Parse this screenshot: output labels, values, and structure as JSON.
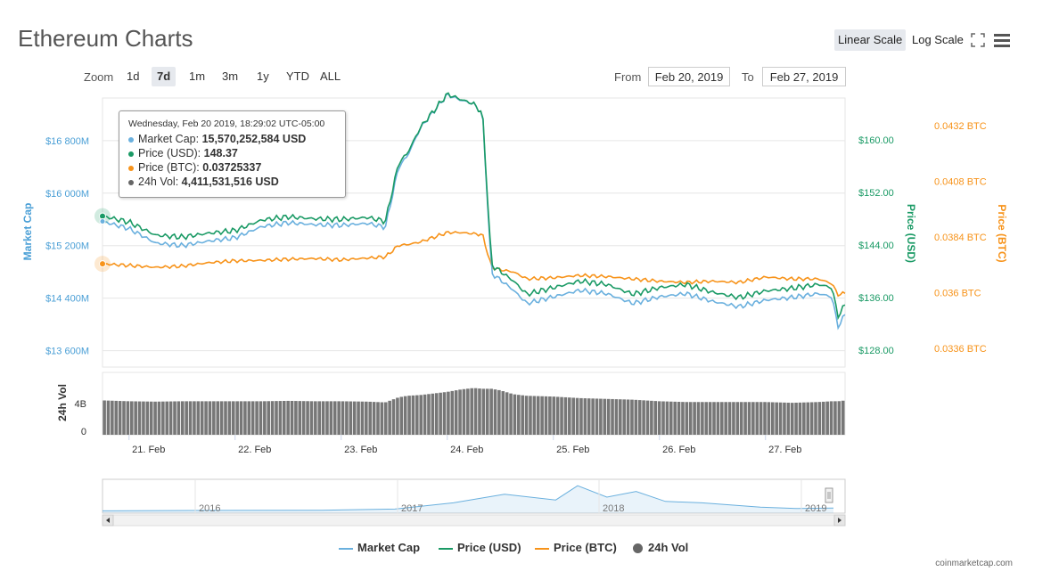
{
  "header": {
    "title": "Ethereum Charts",
    "linear_label": "Linear Scale",
    "log_label": "Log Scale"
  },
  "toolbar": {
    "zoom_label": "Zoom",
    "zoom_options": [
      "1d",
      "7d",
      "1m",
      "3m",
      "1y",
      "YTD",
      "ALL"
    ],
    "zoom_selected": "7d",
    "from_label": "From",
    "from_value": "Feb 20, 2019",
    "to_label": "To",
    "to_value": "Feb 27, 2019"
  },
  "tooltip": {
    "header": "Wednesday, Feb 20 2019, 18:29:02 UTC-05:00",
    "rows": [
      {
        "label": "Market Cap:",
        "value": "15,570,252,584 USD",
        "color": "#6ab0de"
      },
      {
        "label": "Price (USD):",
        "value": "148.37",
        "color": "#1a9a65"
      },
      {
        "label": "Price (BTC):",
        "value": "0.03725337",
        "color": "#f7931a"
      },
      {
        "label": "24h Vol:",
        "value": "4,411,531,516 USD",
        "color": "#666666"
      }
    ]
  },
  "legend": [
    {
      "name": "Market Cap",
      "color": "#6ab0de",
      "kind": "line"
    },
    {
      "name": "Price (USD)",
      "color": "#1a9a65",
      "kind": "line"
    },
    {
      "name": "Price (BTC)",
      "color": "#f7931a",
      "kind": "line"
    },
    {
      "name": "24h Vol",
      "color": "#666666",
      "kind": "circle"
    }
  ],
  "credit": "coinmarketcap.com",
  "chart_data": {
    "type": "line",
    "colors": {
      "market_cap": "#6ab0de",
      "price_usd": "#1a9a65",
      "price_btc": "#f7931a",
      "volume": "#777777"
    },
    "x": [
      "2019-02-20 18:00",
      "2019-02-21 00:00",
      "2019-02-21 06:00",
      "2019-02-21 12:00",
      "2019-02-21 18:00",
      "2019-02-22 00:00",
      "2019-02-22 06:00",
      "2019-02-22 12:00",
      "2019-02-22 18:00",
      "2019-02-23 00:00",
      "2019-02-23 06:00",
      "2019-02-23 10:00",
      "2019-02-23 13:00",
      "2019-02-23 15:00",
      "2019-02-23 18:00",
      "2019-02-24 00:00",
      "2019-02-24 03:00",
      "2019-02-24 06:00",
      "2019-02-24 08:00",
      "2019-02-24 10:00",
      "2019-02-24 12:00",
      "2019-02-24 15:00",
      "2019-02-24 18:00",
      "2019-02-25 00:00",
      "2019-02-25 06:00",
      "2019-02-25 12:00",
      "2019-02-25 18:00",
      "2019-02-26 00:00",
      "2019-02-26 06:00",
      "2019-02-26 12:00",
      "2019-02-26 18:00",
      "2019-02-27 00:00",
      "2019-02-27 06:00",
      "2019-02-27 12:00",
      "2019-02-27 15:00",
      "2019-02-27 16:30",
      "2019-02-27 18:00"
    ],
    "series": [
      {
        "name": "Price (USD)",
        "axis": "right_usd",
        "values": [
          148.4,
          147.5,
          145.5,
          145.2,
          145.8,
          146.2,
          147.8,
          148.3,
          148.0,
          147.9,
          148.2,
          147.6,
          156.5,
          158.0,
          162.0,
          167.0,
          166.2,
          165.5,
          164.0,
          141.0,
          140.0,
          138.5,
          136.5,
          137.5,
          138.5,
          138.0,
          136.5,
          137.5,
          138.0,
          136.8,
          136.0,
          137.0,
          137.4,
          138.0,
          137.5,
          133.0,
          135.0
        ]
      },
      {
        "name": "Market Cap",
        "axis": "left",
        "values": [
          15570,
          15460,
          15240,
          15200,
          15270,
          15320,
          15490,
          15550,
          15520,
          15510,
          15540,
          15480,
          16400,
          16570,
          17000,
          17500,
          17420,
          17360,
          17200,
          14780,
          14680,
          14520,
          14320,
          14420,
          14520,
          14470,
          14320,
          14420,
          14470,
          14350,
          14270,
          14370,
          14410,
          14470,
          14420,
          13950,
          14160
        ]
      },
      {
        "name": "Price (BTC)",
        "axis": "right_btc",
        "values": [
          0.03725,
          0.03718,
          0.0371,
          0.03715,
          0.0373,
          0.03738,
          0.0374,
          0.03745,
          0.03748,
          0.03742,
          0.0375,
          0.03755,
          0.03805,
          0.03808,
          0.0382,
          0.0386,
          0.0386,
          0.03855,
          0.0385,
          0.0371,
          0.037,
          0.0369,
          0.0366,
          0.03665,
          0.03675,
          0.0367,
          0.0366,
          0.0365,
          0.03645,
          0.0365,
          0.03645,
          0.03668,
          0.0366,
          0.0366,
          0.0364,
          0.0359,
          0.036
        ]
      },
      {
        "name": "24h Vol",
        "axis": "volume",
        "values": [
          4.41,
          4.3,
          4.25,
          4.3,
          4.3,
          4.3,
          4.3,
          4.35,
          4.3,
          4.3,
          4.25,
          4.15,
          4.8,
          5.0,
          5.1,
          5.5,
          5.8,
          6.0,
          5.9,
          5.9,
          5.7,
          5.2,
          5.0,
          4.9,
          4.7,
          4.6,
          4.5,
          4.3,
          4.2,
          4.2,
          4.2,
          4.2,
          4.1,
          4.2,
          4.3,
          4.3,
          4.4
        ]
      }
    ],
    "axes": {
      "left": {
        "label": "Market Cap",
        "ticks": [
          "$13 600M",
          "$14 400M",
          "$15 200M",
          "$16 000M",
          "$16 800M"
        ],
        "tick_values": [
          13600,
          14400,
          15200,
          16000,
          16800
        ],
        "range": [
          13350,
          17450
        ]
      },
      "right_usd": {
        "label": "Price (USD)",
        "ticks": [
          "$128.00",
          "$136.00",
          "$144.00",
          "$152.00",
          "$160.00"
        ],
        "tick_values": [
          128,
          136,
          144,
          152,
          160
        ],
        "range": [
          125.4,
          166.4
        ]
      },
      "right_btc": {
        "label": "Price (BTC)",
        "ticks": [
          "0.0336 BTC",
          "0.036 BTC",
          "0.0384 BTC",
          "0.0408 BTC",
          "0.0432 BTC"
        ],
        "tick_values": [
          0.0336,
          0.036,
          0.0384,
          0.0408,
          0.0432
        ],
        "range": [
          0.0328,
          0.0444
        ]
      },
      "volume": {
        "label": "24h Vol",
        "ticks": [
          "0",
          "4B"
        ],
        "tick_values": [
          0,
          4
        ],
        "range": [
          0,
          8
        ]
      },
      "x": {
        "ticks": [
          "21. Feb",
          "22. Feb",
          "23. Feb",
          "24. Feb",
          "25. Feb",
          "26. Feb",
          "27. Feb"
        ],
        "tick_values": [
          "2019-02-21",
          "2019-02-22",
          "2019-02-23",
          "2019-02-24",
          "2019-02-25",
          "2019-02-26",
          "2019-02-27"
        ]
      }
    },
    "navigator": {
      "year_labels": [
        "2016",
        "2017",
        "2018",
        "2019"
      ]
    },
    "grid": true,
    "legend_position": "bottom-center"
  }
}
